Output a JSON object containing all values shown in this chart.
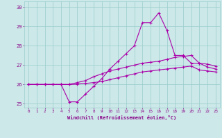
{
  "xlabel": "Windchill (Refroidissement éolien,°C)",
  "x": [
    0,
    1,
    2,
    3,
    4,
    5,
    6,
    7,
    8,
    9,
    10,
    11,
    12,
    13,
    14,
    15,
    16,
    17,
    18,
    19,
    20,
    21,
    22,
    23
  ],
  "line1": [
    26.0,
    26.0,
    26.0,
    26.0,
    26.0,
    25.1,
    25.1,
    25.5,
    25.9,
    26.3,
    26.8,
    27.2,
    27.6,
    28.0,
    29.2,
    29.2,
    29.7,
    28.8,
    27.5,
    27.5,
    27.1,
    27.1,
    26.9,
    26.8
  ],
  "line2": [
    26.0,
    26.0,
    26.0,
    26.0,
    26.0,
    26.0,
    26.1,
    26.2,
    26.4,
    26.55,
    26.7,
    26.8,
    26.9,
    27.0,
    27.1,
    27.15,
    27.2,
    27.3,
    27.4,
    27.45,
    27.5,
    27.1,
    27.05,
    26.95
  ],
  "line3": [
    26.0,
    26.0,
    26.0,
    26.0,
    26.0,
    26.0,
    26.02,
    26.05,
    26.1,
    26.15,
    26.25,
    26.35,
    26.45,
    26.55,
    26.65,
    26.7,
    26.75,
    26.8,
    26.85,
    26.9,
    26.95,
    26.75,
    26.7,
    26.65
  ],
  "ylim": [
    24.8,
    30.3
  ],
  "yticks": [
    25,
    26,
    27,
    28,
    29,
    30
  ],
  "bg_color": "#cce8e8",
  "line_color": "#aa00aa",
  "grid_color": "#99cccc",
  "tick_label_color": "#880088",
  "xlabel_color": "#880088",
  "font": "monospace"
}
